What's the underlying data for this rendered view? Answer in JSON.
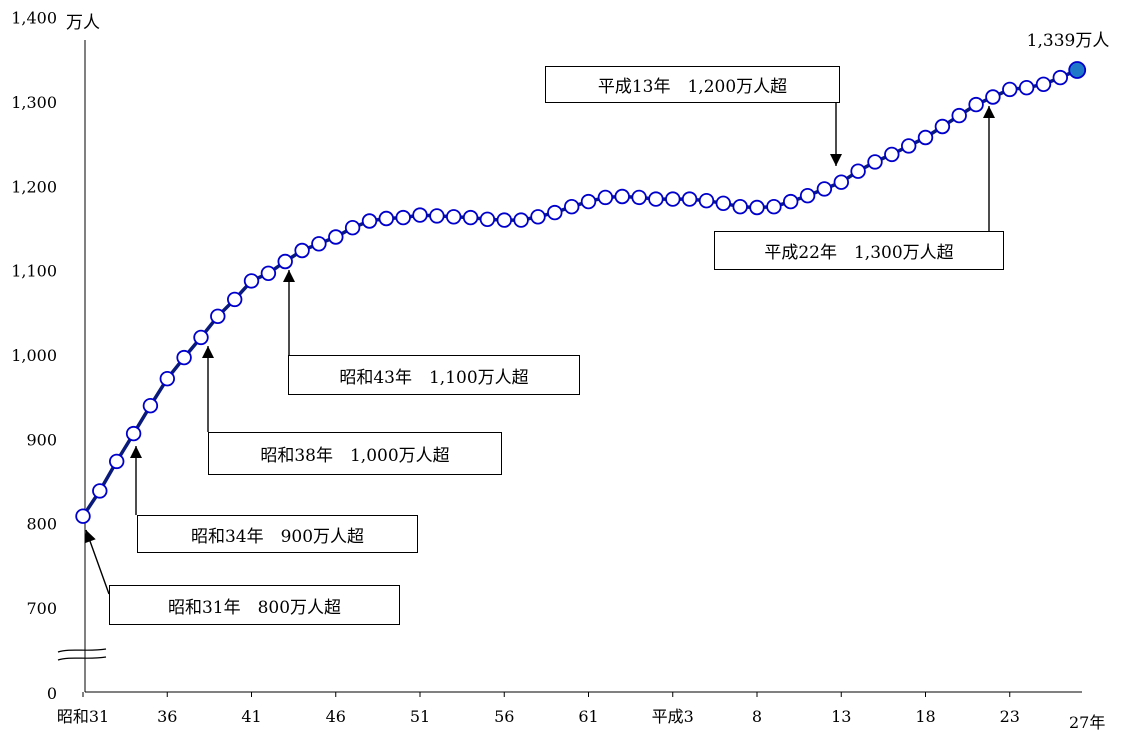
{
  "chart_data": {
    "type": "line",
    "y_unit": "万人",
    "ylim": [
      0,
      1400
    ],
    "y_break": [
      0,
      700
    ],
    "y_ticks": [
      "0",
      "700",
      "800",
      "900",
      "1,000",
      "1,100",
      "1,200",
      "1,300",
      "1,400"
    ],
    "x_tick_labels": [
      "昭和31",
      "36",
      "41",
      "46",
      "51",
      "56",
      "61",
      "平成3",
      "8",
      "13",
      "18",
      "23",
      "27年"
    ],
    "series": [
      {
        "x": [
          "昭和31",
          "昭和32",
          "昭和33",
          "昭和34",
          "昭和35",
          "昭和36",
          "昭和37",
          "昭和38",
          "昭和39",
          "昭和40",
          "昭和41",
          "昭和42",
          "昭和43",
          "昭和44",
          "昭和45",
          "昭和46",
          "昭和47",
          "昭和48",
          "昭和49",
          "昭和50",
          "昭和51",
          "昭和52",
          "昭和53",
          "昭和54",
          "昭和55",
          "昭和56",
          "昭和57",
          "昭和58",
          "昭和59",
          "昭和60",
          "昭和61",
          "昭和62",
          "昭和63",
          "平成元",
          "平成2",
          "平成3",
          "平成4",
          "平成5",
          "平成6",
          "平成7",
          "平成8",
          "平成9",
          "平成10",
          "平成11",
          "平成12",
          "平成13",
          "平成14",
          "平成15",
          "平成16",
          "平成17",
          "平成18",
          "平成19",
          "平成20",
          "平成21",
          "平成22",
          "平成23",
          "平成24",
          "平成25",
          "平成26",
          "平成27"
        ],
        "values": [
          810,
          840,
          875,
          908,
          941,
          973,
          998,
          1022,
          1047,
          1067,
          1089,
          1098,
          1112,
          1125,
          1133,
          1141,
          1152,
          1160,
          1163,
          1164,
          1167,
          1166,
          1165,
          1164,
          1162,
          1161,
          1161,
          1165,
          1170,
          1177,
          1183,
          1188,
          1189,
          1188,
          1186,
          1186,
          1186,
          1184,
          1181,
          1177,
          1176,
          1177,
          1183,
          1190,
          1198,
          1206,
          1219,
          1230,
          1239,
          1249,
          1259,
          1272,
          1285,
          1298,
          1307,
          1316,
          1318,
          1322,
          1330,
          1339
        ]
      }
    ],
    "annotations": [
      {
        "text": "昭和31年　800万人超",
        "index": 0
      },
      {
        "text": "昭和34年　900万人超",
        "index": 3
      },
      {
        "text": "昭和38年　1,000万人超",
        "index": 7
      },
      {
        "text": "昭和43年　1,100万人超",
        "index": 12
      },
      {
        "text": "平成13年　1,200万人超",
        "index": 45
      },
      {
        "text": "平成22年　1,300万人超",
        "index": 54
      }
    ],
    "last_point_label": "1,339万人",
    "colors": {
      "line": "#0a1a7a",
      "marker": "#0000cc",
      "marker_last_fill": "#1f78c8",
      "axis": "#000000"
    }
  }
}
